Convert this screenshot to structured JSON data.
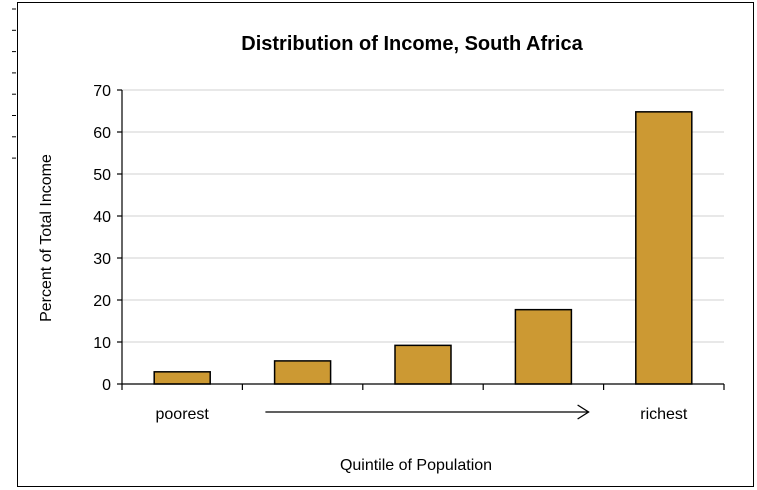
{
  "chart_data": {
    "type": "bar",
    "title": "Distribution of Income, South Africa",
    "xlabel": "Quintile of Population",
    "ylabel": "Percent of Total Income",
    "categories": [
      "poorest",
      "",
      "",
      "",
      "richest"
    ],
    "values": [
      2.9,
      5.5,
      9.2,
      17.7,
      64.8
    ],
    "ylim": [
      0,
      70
    ],
    "yticks": [
      0,
      10,
      20,
      30,
      40,
      50,
      60,
      70
    ],
    "grid": true,
    "bar_color": "#cc9933",
    "annotations": [
      {
        "type": "arrow",
        "from_category": 1,
        "to_category": 3,
        "direction": "right"
      }
    ]
  }
}
